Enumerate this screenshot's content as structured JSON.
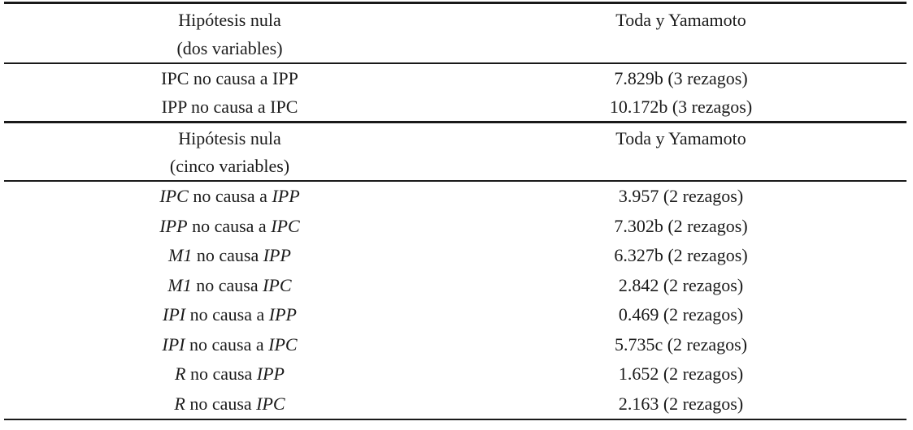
{
  "document": {
    "background_color": "#ffffff",
    "text_color": "#1b1b1b",
    "rule_color": "#191919"
  },
  "table": {
    "sections": [
      {
        "header": {
          "hypothesis_line1": "Hipótesis nula",
          "hypothesis_line2": "(dos variables)",
          "test_label": "Toda y Yamamoto"
        },
        "variables_italic": false,
        "rows": [
          {
            "cause": "IPC",
            "relation": " no causa a ",
            "effect": "IPP",
            "statistic": "7.829b (3 rezagos)"
          },
          {
            "cause": "IPP",
            "relation": " no causa a ",
            "effect": "IPC",
            "statistic": "10.172b (3 rezagos)"
          }
        ]
      },
      {
        "header": {
          "hypothesis_line1": "Hipótesis nula",
          "hypothesis_line2": "(cinco variables)",
          "test_label": "Toda y Yamamoto"
        },
        "variables_italic": true,
        "rows": [
          {
            "cause": "IPC",
            "relation": " no causa a ",
            "effect": "IPP",
            "statistic": "3.957 (2 rezagos)"
          },
          {
            "cause": "IPP",
            "relation": " no causa a ",
            "effect": "IPC",
            "statistic": "7.302b (2 rezagos)"
          },
          {
            "cause": "M1",
            "relation": " no causa ",
            "effect": "IPP",
            "statistic": "6.327b (2 rezagos)"
          },
          {
            "cause": "M1",
            "relation": " no causa ",
            "effect": "IPC",
            "statistic": "2.842 (2 rezagos)"
          },
          {
            "cause": "IPI",
            "relation": " no causa a ",
            "effect": "IPP",
            "statistic": "0.469 (2 rezagos)"
          },
          {
            "cause": "IPI",
            "relation": " no causa a ",
            "effect": "IPC",
            "statistic": "5.735c (2 rezagos)"
          },
          {
            "cause": "R",
            "relation": " no causa ",
            "effect": "IPP",
            "statistic": "1.652 (2 rezagos)"
          },
          {
            "cause": "R",
            "relation": " no causa ",
            "effect": "IPC",
            "statistic": "2.163 (2 rezagos)"
          }
        ]
      }
    ]
  }
}
